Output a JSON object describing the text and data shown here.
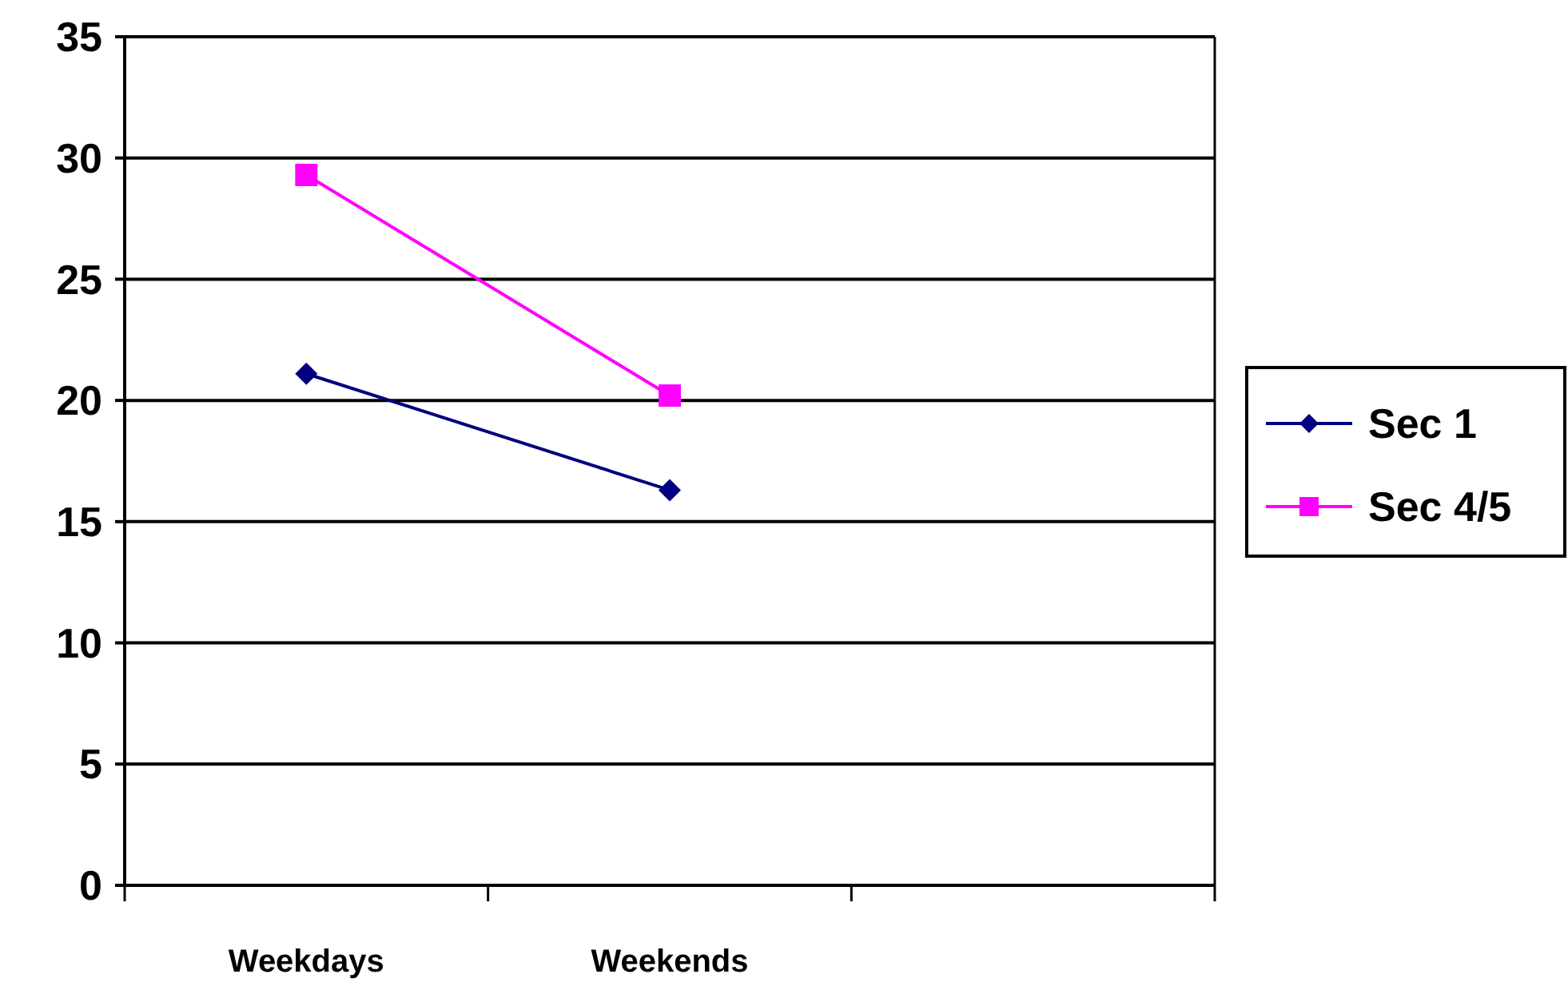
{
  "chart_data": {
    "type": "line",
    "categories": [
      "Weekdays",
      "Weekends",
      null
    ],
    "series": [
      {
        "name": "Sec 1",
        "color": "#000080",
        "marker": "diamond",
        "values": [
          21.1,
          16.3,
          null
        ]
      },
      {
        "name": "Sec 4/5",
        "color": "#ff00ff",
        "marker": "square",
        "values": [
          29.3,
          20.2,
          null
        ]
      }
    ],
    "ylim": [
      0,
      35
    ],
    "yticks": [
      0,
      5,
      10,
      15,
      20,
      25,
      30,
      35
    ],
    "grid": "y",
    "legend": "right"
  }
}
